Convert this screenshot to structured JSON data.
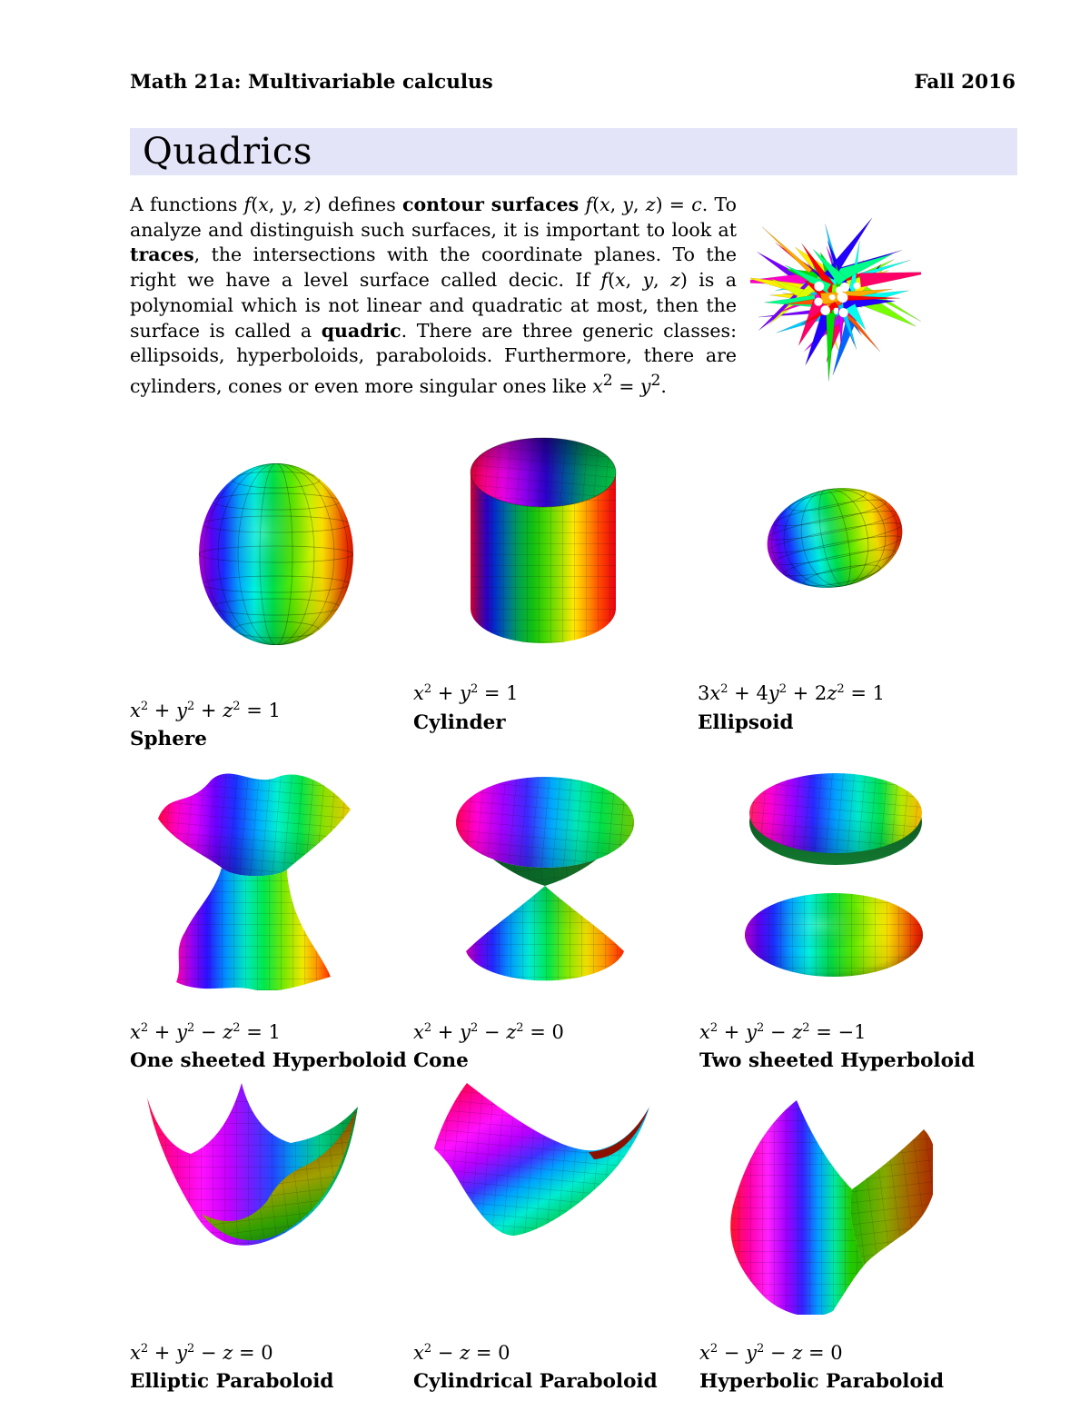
{
  "header": {
    "course": "Math 21a: Multivariable calculus",
    "term": "Fall 2016"
  },
  "banner": {
    "title": "Quadrics",
    "bg": "#e4e4f8"
  },
  "intro": {
    "segments": [
      {
        "t": "A functions ",
        "s": "n"
      },
      {
        "t": "f(x, y, z)",
        "s": "m"
      },
      {
        "t": " defines ",
        "s": "n"
      },
      {
        "t": "contour surfaces",
        "s": "b"
      },
      {
        "t": " ",
        "s": "n"
      },
      {
        "t": "f(x, y, z) = c",
        "s": "m"
      },
      {
        "t": ". To analyze and distinguish such surfaces, it is important to look at ",
        "s": "n"
      },
      {
        "t": "traces",
        "s": "b"
      },
      {
        "t": ", the intersections with the coordinate planes. To the right we have a level surface called decic. If ",
        "s": "n"
      },
      {
        "t": "f(x, y, z)",
        "s": "m"
      },
      {
        "t": " is a polynomial which is not linear and quadratic at most, then the surface is called a ",
        "s": "n"
      },
      {
        "t": "quadric",
        "s": "b"
      },
      {
        "t": ". There are three generic classes: ellipsoids, hyperboloids, paraboloids. Furthermore, there are cylinders, cones or even more singular ones like ",
        "s": "n"
      },
      {
        "t": "x^2 = y^2",
        "s": "m"
      },
      {
        "t": ".",
        "s": "n"
      }
    ]
  },
  "decic": {
    "palette": [
      "#ff0000",
      "#ff0066",
      "#ff00cc",
      "#cc00ff",
      "#7700ff",
      "#2200ff",
      "#0066ff",
      "#00ccff",
      "#00ffee",
      "#00ff88",
      "#00dd00",
      "#77ff00",
      "#ddff00",
      "#ffee00",
      "#ffaa00",
      "#ff5500"
    ]
  },
  "figures": [
    {
      "id": "sphere",
      "equation": "x^2 + y^2 + z^2 = 1",
      "name": "Sphere"
    },
    {
      "id": "cylinder",
      "equation": "x^2 + y^2 = 1",
      "name": "Cylinder"
    },
    {
      "id": "ellipsoid",
      "equation": "3x^2 + 4y^2 + 2z^2 = 1",
      "name": "Ellipsoid"
    },
    {
      "id": "one-sheeted-hyperboloid",
      "equation": "x^2 + y^2 − z^2 = 1",
      "name": "One sheeted Hyperboloid"
    },
    {
      "id": "cone",
      "equation": "x^2 + y^2 − z^2 = 0",
      "name": "Cone"
    },
    {
      "id": "two-sheeted-hyperboloid",
      "equation": "x^2 + y^2 − z^2 = −1",
      "name": "Two sheeted Hyperboloid"
    },
    {
      "id": "elliptic-paraboloid",
      "equation": "x^2 + y^2 − z = 0",
      "name": "Elliptic Paraboloid"
    },
    {
      "id": "cylindrical-paraboloid",
      "equation": "x^2 − z = 0",
      "name": "Cylindrical Paraboloid"
    },
    {
      "id": "hyperbolic-paraboloid",
      "equation": "x^2 − y^2 − z = 0",
      "name": "Hyperbolic Paraboloid"
    }
  ],
  "rainbow": [
    "#b500d8",
    "#1b2bff",
    "#00a6ff",
    "#00f2e1",
    "#00e04a",
    "#57e800",
    "#c8f000",
    "#ffe400",
    "#ff9500",
    "#ff3000"
  ]
}
